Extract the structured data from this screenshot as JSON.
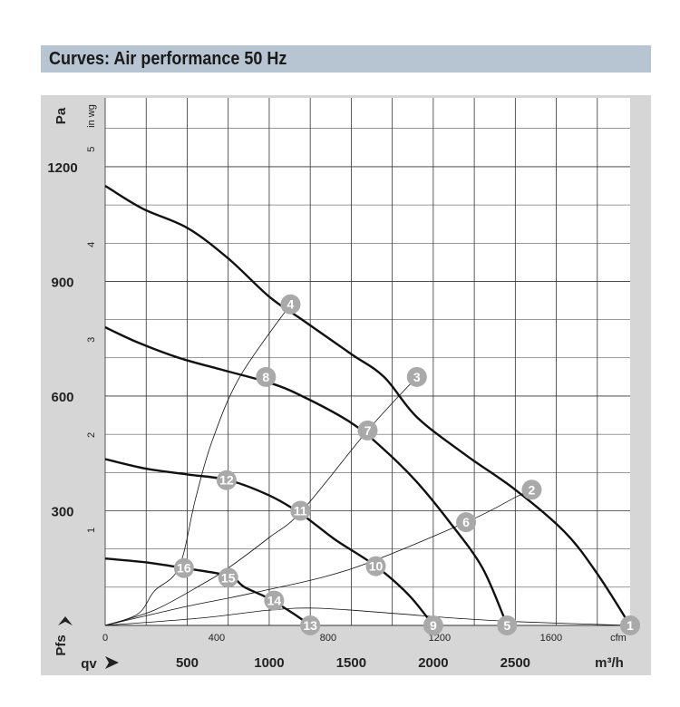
{
  "header": {
    "title": "Curves: Air performance 50 Hz"
  },
  "colors": {
    "title_bar": "#b7c4d1",
    "frame": "#d6d6d6",
    "grid": "#333333",
    "curve": "#111111",
    "marker": "#a9a9a9",
    "marker_text": "#ffffff"
  },
  "chart_data": {
    "type": "line",
    "title": "Curves: Air performance 50 Hz",
    "x_units": {
      "primary": "m³/h",
      "secondary": "cfm"
    },
    "y_units": {
      "primary": "Pa",
      "secondary": "in wg"
    },
    "xlabel": "qv",
    "ylabel": "Pfs",
    "xlim": [
      0,
      3200
    ],
    "ylim": [
      0,
      1380
    ],
    "grid": true,
    "x_ticks": [
      500,
      1000,
      1500,
      2000,
      2500
    ],
    "x_tick_labels": [
      "500",
      "1000",
      "1500",
      "2000",
      "2500"
    ],
    "x_unit_label": "m³/h",
    "cfm_ticks": [
      0,
      400,
      800,
      1200,
      1600
    ],
    "cfm_tick_labels": [
      "0",
      "400",
      "800",
      "1200",
      "1600"
    ],
    "cfm_unit_label": "cfm",
    "y_ticks": [
      300,
      600,
      900,
      1200
    ],
    "y_tick_labels": [
      "300",
      "600",
      "900",
      "1200"
    ],
    "y_unit_label": "Pa",
    "inwg_ticks": [
      1,
      2,
      3,
      4,
      5
    ],
    "inwg_tick_labels": [
      "1",
      "2",
      "3",
      "4",
      "5"
    ],
    "inwg_unit_label": "in wg",
    "series": [
      {
        "values": [
          [
            0,
            1150
          ],
          [
            230,
            1090
          ],
          [
            500,
            1040
          ],
          [
            750,
            960
          ],
          [
            1000,
            860
          ],
          [
            1200,
            800
          ],
          [
            1500,
            710
          ],
          [
            1700,
            650
          ],
          [
            1900,
            545
          ],
          [
            2200,
            445
          ],
          [
            2500,
            355
          ],
          [
            2800,
            245
          ],
          [
            3000,
            135
          ],
          [
            3200,
            0
          ]
        ]
      },
      {
        "values": [
          [
            0,
            780
          ],
          [
            200,
            740
          ],
          [
            450,
            700
          ],
          [
            700,
            670
          ],
          [
            1000,
            635
          ],
          [
            1200,
            600
          ],
          [
            1500,
            530
          ],
          [
            1700,
            460
          ],
          [
            1900,
            375
          ],
          [
            2100,
            270
          ],
          [
            2300,
            150
          ],
          [
            2450,
            0
          ]
        ]
      },
      {
        "values": [
          [
            0,
            435
          ],
          [
            250,
            410
          ],
          [
            500,
            395
          ],
          [
            750,
            380
          ],
          [
            1000,
            340
          ],
          [
            1200,
            290
          ],
          [
            1400,
            225
          ],
          [
            1650,
            155
          ],
          [
            1850,
            80
          ],
          [
            2000,
            0
          ]
        ]
      },
      {
        "values": [
          [
            0,
            175
          ],
          [
            250,
            165
          ],
          [
            480,
            150
          ],
          [
            750,
            130
          ],
          [
            850,
            100
          ],
          [
            1000,
            70
          ],
          [
            1150,
            30
          ],
          [
            1250,
            0
          ]
        ]
      },
      {
        "values": [
          [
            0,
            0
          ],
          [
            200,
            30
          ],
          [
            300,
            90
          ],
          [
            450,
            152
          ],
          [
            550,
            330
          ],
          [
            650,
            480
          ],
          [
            820,
            650
          ],
          [
            1130,
            840
          ]
        ]
      },
      {
        "values": [
          [
            0,
            0
          ],
          [
            300,
            40
          ],
          [
            600,
            110
          ],
          [
            750,
            150
          ],
          [
            1000,
            230
          ],
          [
            1200,
            300
          ],
          [
            1600,
            510
          ],
          [
            1900,
            650
          ]
        ]
      },
      {
        "values": [
          [
            0,
            0
          ],
          [
            500,
            50
          ],
          [
            900,
            85
          ],
          [
            1500,
            148
          ],
          [
            2200,
            270
          ],
          [
            2500,
            335
          ],
          [
            2600,
            355
          ]
        ]
      },
      {
        "values": [
          [
            0,
            0
          ],
          [
            600,
            20
          ],
          [
            1000,
            40
          ],
          [
            1300,
            45
          ],
          [
            1800,
            30
          ],
          [
            2100,
            20
          ],
          [
            2500,
            10
          ],
          [
            3200,
            0
          ]
        ]
      }
    ],
    "markers": [
      {
        "label": "1",
        "x": 3200,
        "y": 0
      },
      {
        "label": "2",
        "x": 2600,
        "y": 355
      },
      {
        "label": "3",
        "x": 1900,
        "y": 650
      },
      {
        "label": "4",
        "x": 1130,
        "y": 840
      },
      {
        "label": "5",
        "x": 2450,
        "y": 0
      },
      {
        "label": "6",
        "x": 2200,
        "y": 270
      },
      {
        "label": "7",
        "x": 1600,
        "y": 510
      },
      {
        "label": "8",
        "x": 980,
        "y": 650
      },
      {
        "label": "9",
        "x": 2000,
        "y": 0
      },
      {
        "label": "10",
        "x": 1650,
        "y": 155
      },
      {
        "label": "11",
        "x": 1190,
        "y": 300
      },
      {
        "label": "12",
        "x": 740,
        "y": 380
      },
      {
        "label": "13",
        "x": 1250,
        "y": 0
      },
      {
        "label": "14",
        "x": 1030,
        "y": 65
      },
      {
        "label": "15",
        "x": 750,
        "y": 125
      },
      {
        "label": "16",
        "x": 480,
        "y": 150
      }
    ]
  }
}
